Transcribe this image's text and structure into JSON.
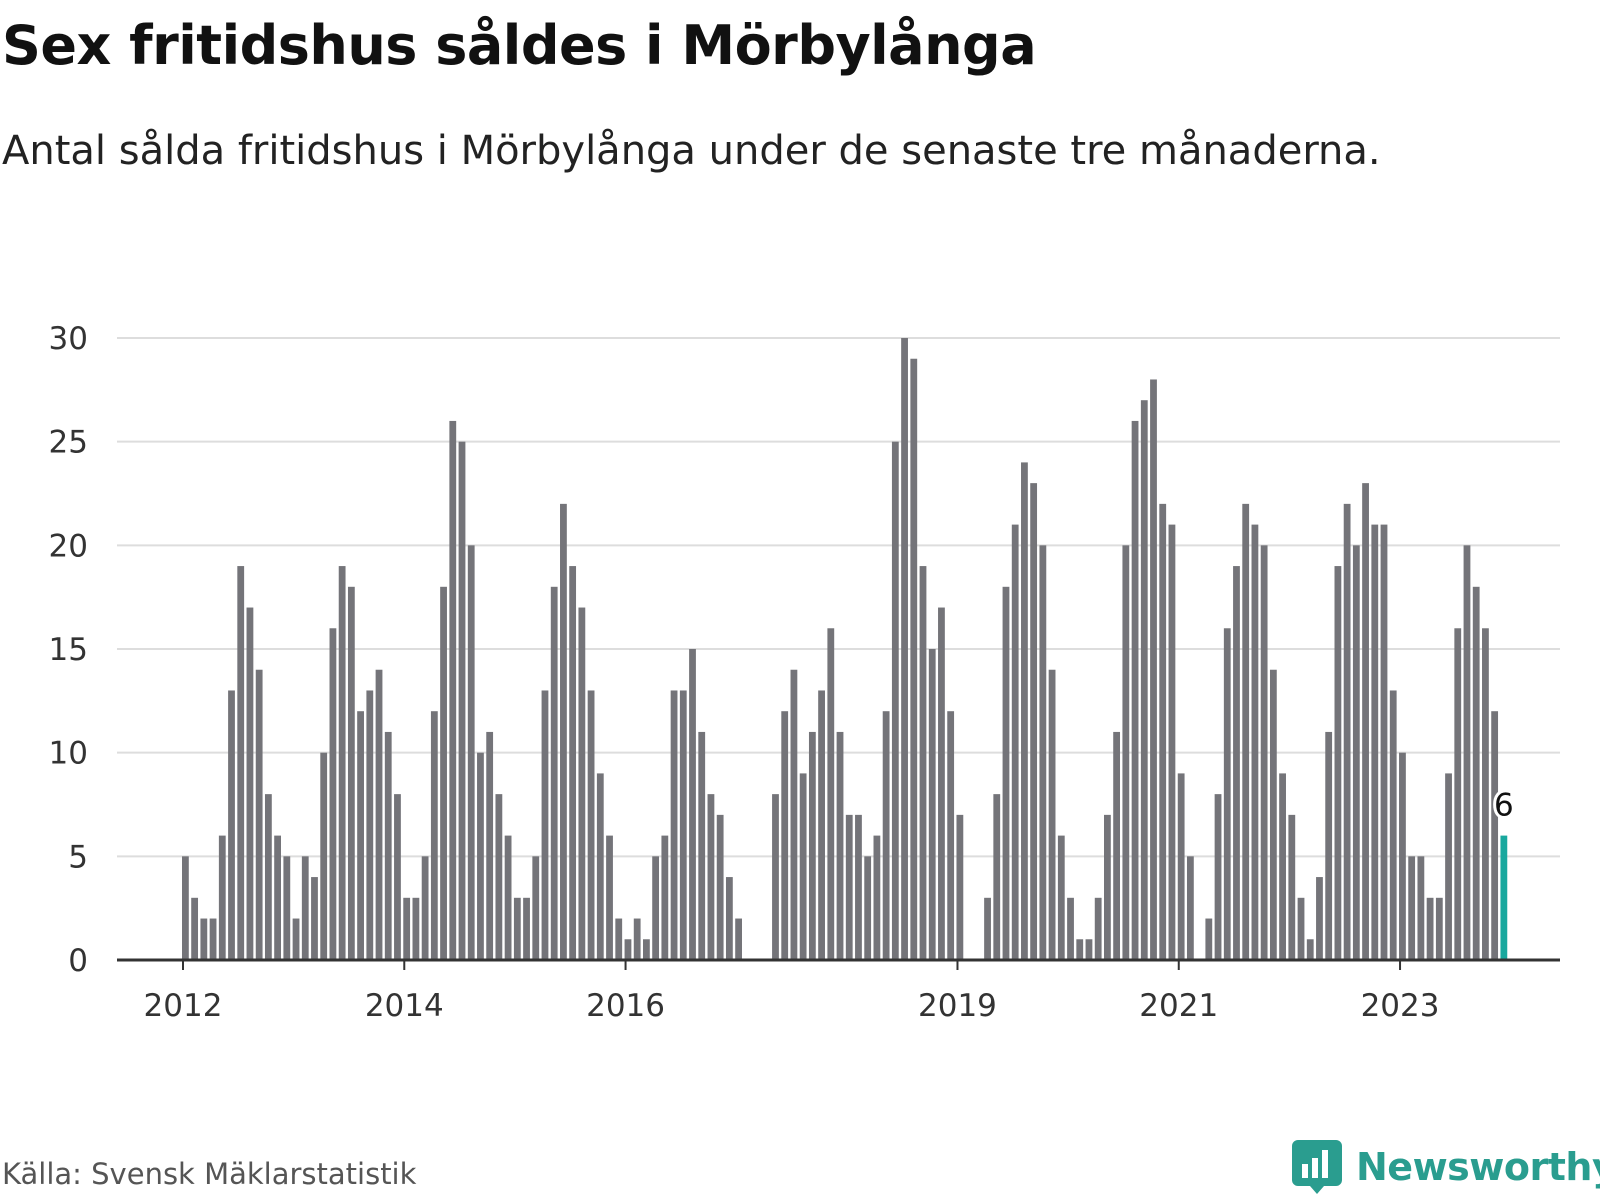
{
  "title": "Sex fritidshus såldes i Mörbylånga",
  "subtitle": "Antal sålda fritidshus i Mörbylånga under de senaste tre månaderna.",
  "source": "Källa: Svensk Mäklarstatistik",
  "brand": "Newsworthy",
  "colors": {
    "bar": "#747479",
    "highlight": "#19a89e",
    "grid": "#dddddd",
    "axis": "#333333",
    "brand": "#2a9d8f"
  },
  "chart_data": {
    "type": "bar",
    "ylim": [
      0,
      30
    ],
    "yticks": [
      0,
      5,
      10,
      15,
      20,
      25,
      30
    ],
    "grid": true,
    "xtick_labels": [
      {
        "label": "2012",
        "index": 0
      },
      {
        "label": "2014",
        "index": 24
      },
      {
        "label": "2016",
        "index": 48
      },
      {
        "label": "2019",
        "index": 84
      },
      {
        "label": "2021",
        "index": 108
      },
      {
        "label": "2023",
        "index": 132
      }
    ],
    "period_start": "2012-01",
    "values": [
      5,
      3,
      2,
      2,
      6,
      13,
      19,
      17,
      14,
      8,
      6,
      5,
      2,
      5,
      4,
      10,
      16,
      19,
      18,
      12,
      13,
      14,
      11,
      8,
      3,
      3,
      5,
      12,
      18,
      26,
      25,
      20,
      10,
      11,
      8,
      6,
      3,
      3,
      5,
      13,
      18,
      22,
      19,
      17,
      13,
      9,
      6,
      2,
      1,
      2,
      1,
      5,
      6,
      13,
      13,
      15,
      11,
      8,
      7,
      4,
      2,
      0,
      0,
      0,
      8,
      12,
      14,
      9,
      11,
      13,
      16,
      11,
      7,
      7,
      5,
      6,
      12,
      25,
      30,
      29,
      19,
      15,
      17,
      12,
      7,
      0,
      0,
      3,
      8,
      18,
      21,
      24,
      23,
      20,
      14,
      6,
      3,
      1,
      1,
      3,
      7,
      11,
      20,
      26,
      27,
      28,
      22,
      21,
      9,
      5,
      0,
      2,
      8,
      16,
      19,
      22,
      21,
      20,
      14,
      9,
      7,
      3,
      1,
      4,
      11,
      19,
      22,
      20,
      23,
      21,
      21,
      13,
      10,
      5,
      5,
      3,
      3,
      9,
      16,
      20,
      18,
      16,
      12,
      6
    ],
    "highlight_last": true,
    "highlight_label": "6"
  }
}
